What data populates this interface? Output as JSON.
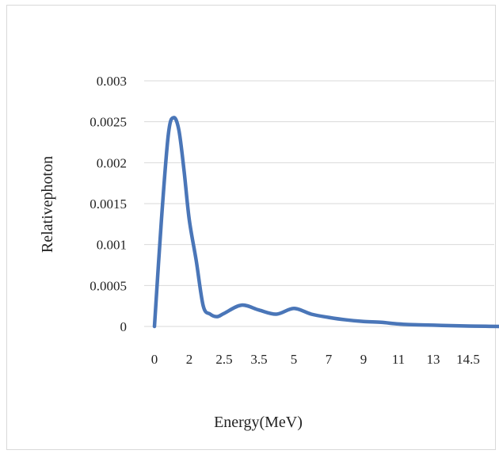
{
  "chart_data": {
    "type": "line",
    "title": "",
    "xlabel": "Energy(MeV)",
    "ylabel": "Relativephoton",
    "x_tick_labels": [
      "0",
      "2",
      "2.5",
      "3.5",
      "5",
      "7",
      "9",
      "11",
      "13",
      "14.5"
    ],
    "y_tick_labels": [
      "0",
      "0.0005",
      "0.001",
      "0.0015",
      "0.002",
      "0.0025",
      "0.003"
    ],
    "ylim": [
      0,
      0.003
    ],
    "grid": "horizontal",
    "legend": "none",
    "line_color": "#4a76b8",
    "series": [
      {
        "x_category_index": [
          0,
          0.2,
          0.4,
          0.55,
          0.7,
          0.85,
          1.0,
          1.2,
          1.4,
          1.6,
          1.8,
          2.0,
          2.5,
          3.0,
          3.5,
          4.0,
          4.5,
          5.0,
          5.5,
          6.0,
          6.5,
          7.0,
          7.5,
          8.0,
          8.5,
          9.0,
          9.5,
          9.9
        ],
        "values": [
          0,
          0.0013,
          0.00235,
          0.00255,
          0.0024,
          0.0019,
          0.0013,
          0.0008,
          0.00025,
          0.00015,
          0.00012,
          0.00016,
          0.00026,
          0.0002,
          0.00015,
          0.00022,
          0.00015,
          0.00011,
          8e-05,
          6e-05,
          5e-05,
          3e-05,
          2e-05,
          1.5e-05,
          1e-05,
          5e-06,
          2e-06,
          0
        ]
      }
    ]
  }
}
